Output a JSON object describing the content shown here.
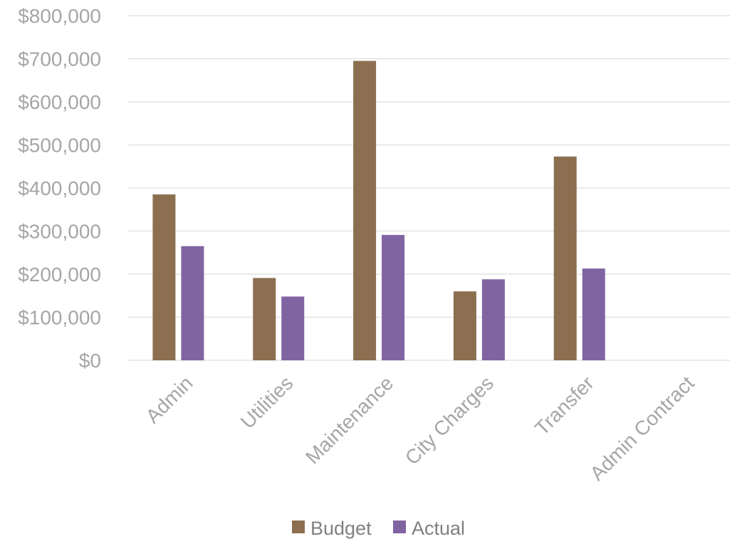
{
  "chart_data": {
    "type": "bar",
    "categories": [
      "Admin",
      "Utilities",
      "Maintenance",
      "City Charges",
      "Transfer",
      "Admin Contract"
    ],
    "series": [
      {
        "name": "Budget",
        "values": [
          385000,
          191000,
          695000,
          160000,
          473000,
          0
        ]
      },
      {
        "name": "Actual",
        "values": [
          265000,
          148000,
          291000,
          188000,
          213000,
          0
        ]
      }
    ],
    "ylim": [
      0,
      800000
    ],
    "yticks": [
      "$0",
      "$100,000",
      "$200,000",
      "$300,000",
      "$400,000",
      "$500,000",
      "$600,000",
      "$700,000",
      "$800,000"
    ],
    "grid": true,
    "legend_position": "bottom"
  },
  "colors": {
    "Budget": "#8B6F50",
    "Actual": "#8064A2",
    "grid": "#E3E3E3",
    "tick_text": "#A6A6A6",
    "legend_text": "#808080"
  }
}
